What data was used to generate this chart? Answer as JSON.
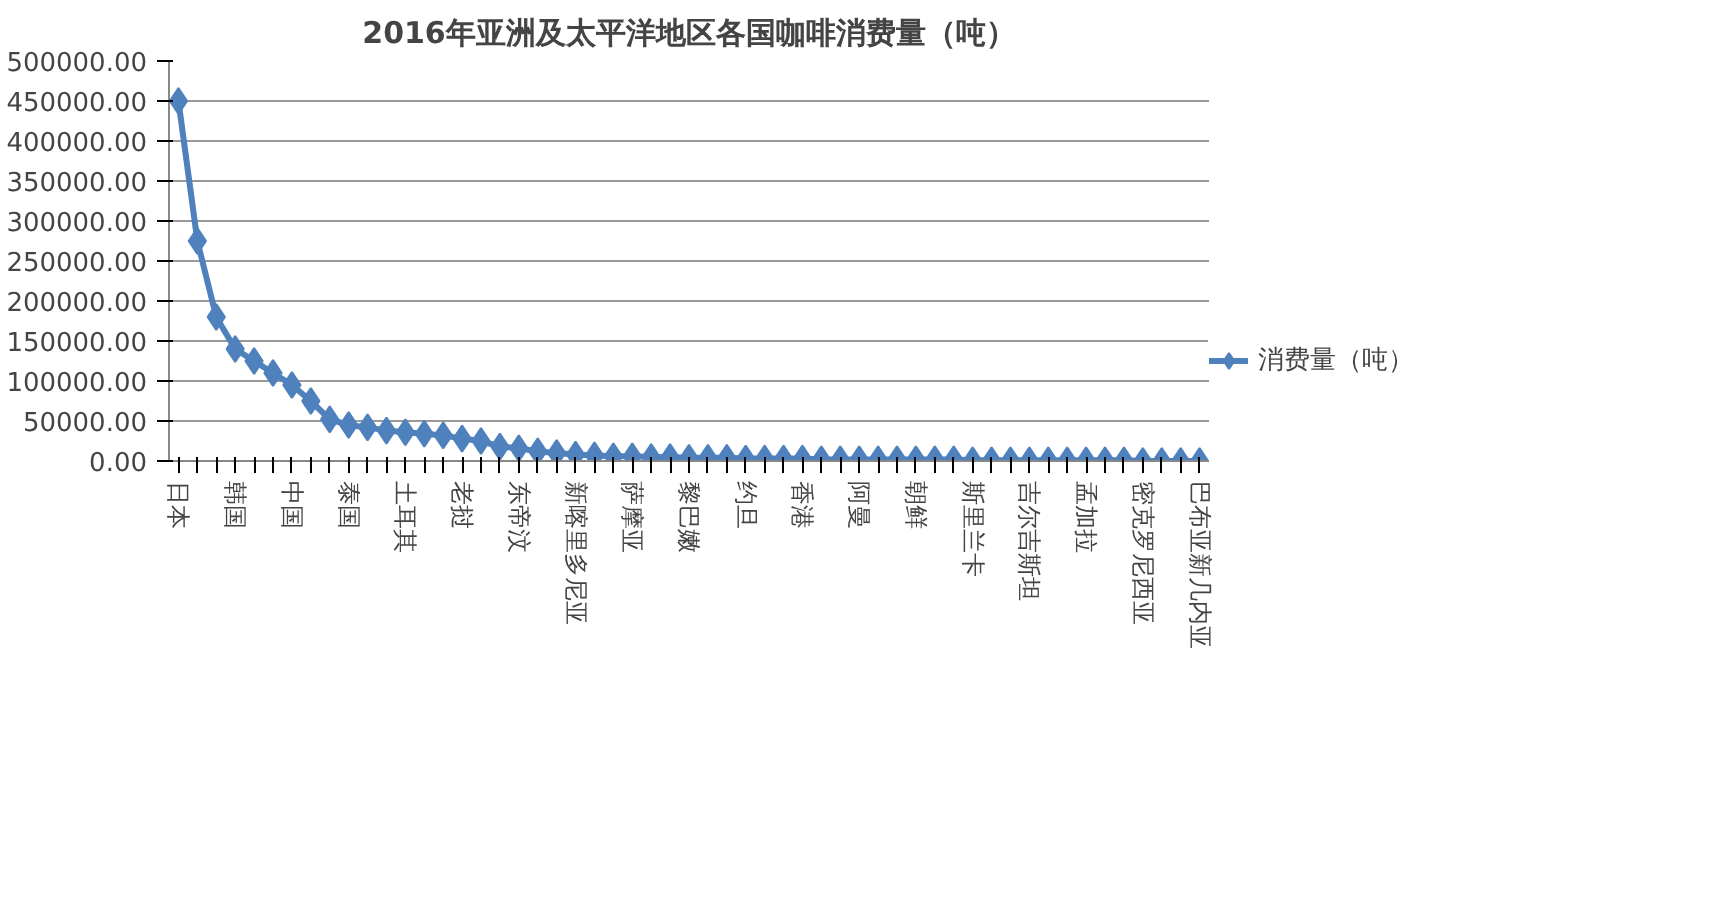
{
  "chart_data": {
    "type": "line",
    "title": "2016年亚洲及太平洋地区各国咖啡消费量（吨）",
    "categories": [
      "日本",
      null,
      null,
      "韩国",
      null,
      null,
      "中国",
      null,
      null,
      "泰国",
      null,
      null,
      "土耳其",
      null,
      null,
      "老挝",
      null,
      null,
      "东帝汶",
      null,
      null,
      "新喀里多尼亚",
      null,
      null,
      "萨摩亚",
      null,
      null,
      "黎巴嫩",
      null,
      null,
      "约旦",
      null,
      null,
      "香港",
      null,
      null,
      "阿曼",
      null,
      null,
      "朝鲜",
      null,
      null,
      "斯里兰卡",
      null,
      null,
      "吉尔吉斯坦",
      null,
      null,
      "孟加拉",
      null,
      null,
      "密克罗尼西亚",
      null,
      null,
      "巴布亚新几内亚"
    ],
    "series": [
      {
        "name": "消费量（吨）",
        "color": "#4f81bd",
        "values": [
          450000,
          275000,
          180000,
          140000,
          125000,
          110000,
          95000,
          75000,
          52000,
          45000,
          42000,
          38000,
          36000,
          34000,
          32000,
          28000,
          25000,
          18000,
          16000,
          12000,
          10000,
          8000,
          7000,
          6000,
          6000,
          5000,
          5000,
          4000,
          4000,
          4000,
          3000,
          3000,
          3000,
          3000,
          2000,
          2000,
          2000,
          2000,
          2000,
          2000,
          2000,
          2000,
          1000,
          1000,
          1000,
          1000,
          1000,
          1000,
          1000,
          1000,
          1000,
          0,
          0,
          0,
          0
        ]
      }
    ],
    "ylim": [
      0,
      500000
    ],
    "yticks": [
      {
        "value": 0,
        "label": "0.00"
      },
      {
        "value": 50000,
        "label": "50000.00"
      },
      {
        "value": 100000,
        "label": "100000.00"
      },
      {
        "value": 150000,
        "label": "150000.00"
      },
      {
        "value": 200000,
        "label": "200000.00"
      },
      {
        "value": 250000,
        "label": "250000.00"
      },
      {
        "value": 300000,
        "label": "300000.00"
      },
      {
        "value": 350000,
        "label": "350000.00"
      },
      {
        "value": 400000,
        "label": "400000.00"
      },
      {
        "value": 450000,
        "label": "450000.00"
      },
      {
        "value": 500000,
        "label": "500000.00"
      }
    ],
    "grid": "y",
    "legend": "right",
    "marker": "diamond",
    "line_style": "solid"
  }
}
